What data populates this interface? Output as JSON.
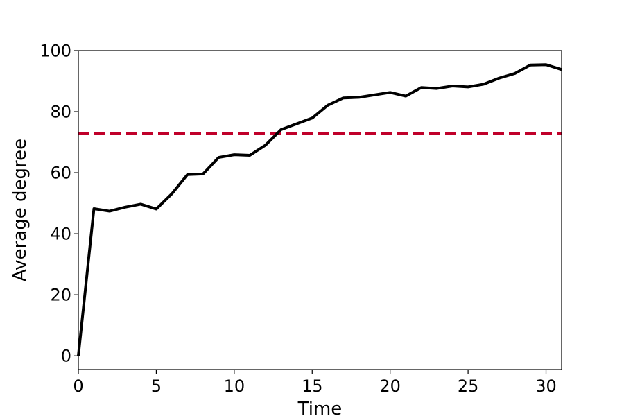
{
  "chart_data": {
    "type": "line",
    "title": "",
    "xlabel": "Time",
    "ylabel": "Average degree",
    "xlim": [
      0,
      31
    ],
    "ylim": [
      -4.5,
      100
    ],
    "xticks": [
      0,
      5,
      10,
      15,
      20,
      25,
      30
    ],
    "yticks": [
      0,
      20,
      40,
      60,
      80,
      100
    ],
    "grid": false,
    "legend": "none",
    "series": [
      {
        "color": "#000000",
        "x": [
          0,
          1,
          2,
          3,
          4,
          5,
          6,
          7,
          8,
          9,
          10,
          11,
          12,
          13,
          14,
          15,
          16,
          17,
          18,
          19,
          20,
          21,
          22,
          23,
          24,
          25,
          26,
          27,
          28,
          29,
          30,
          31
        ],
        "y": [
          0,
          48.2,
          47.4,
          48.7,
          49.7,
          48.1,
          53.1,
          59.4,
          59.6,
          65.0,
          65.9,
          65.7,
          69.0,
          74.1,
          76.0,
          77.9,
          82.1,
          84.5,
          84.7,
          85.5,
          86.3,
          85.1,
          87.9,
          87.6,
          88.4,
          88.1,
          89.0,
          91.0,
          92.5,
          95.3,
          95.4,
          93.8
        ]
      }
    ],
    "reference_lines": [
      {
        "orientation": "horizontal",
        "y": 72.8,
        "color": "#c0002a",
        "style": "dashed"
      }
    ]
  }
}
